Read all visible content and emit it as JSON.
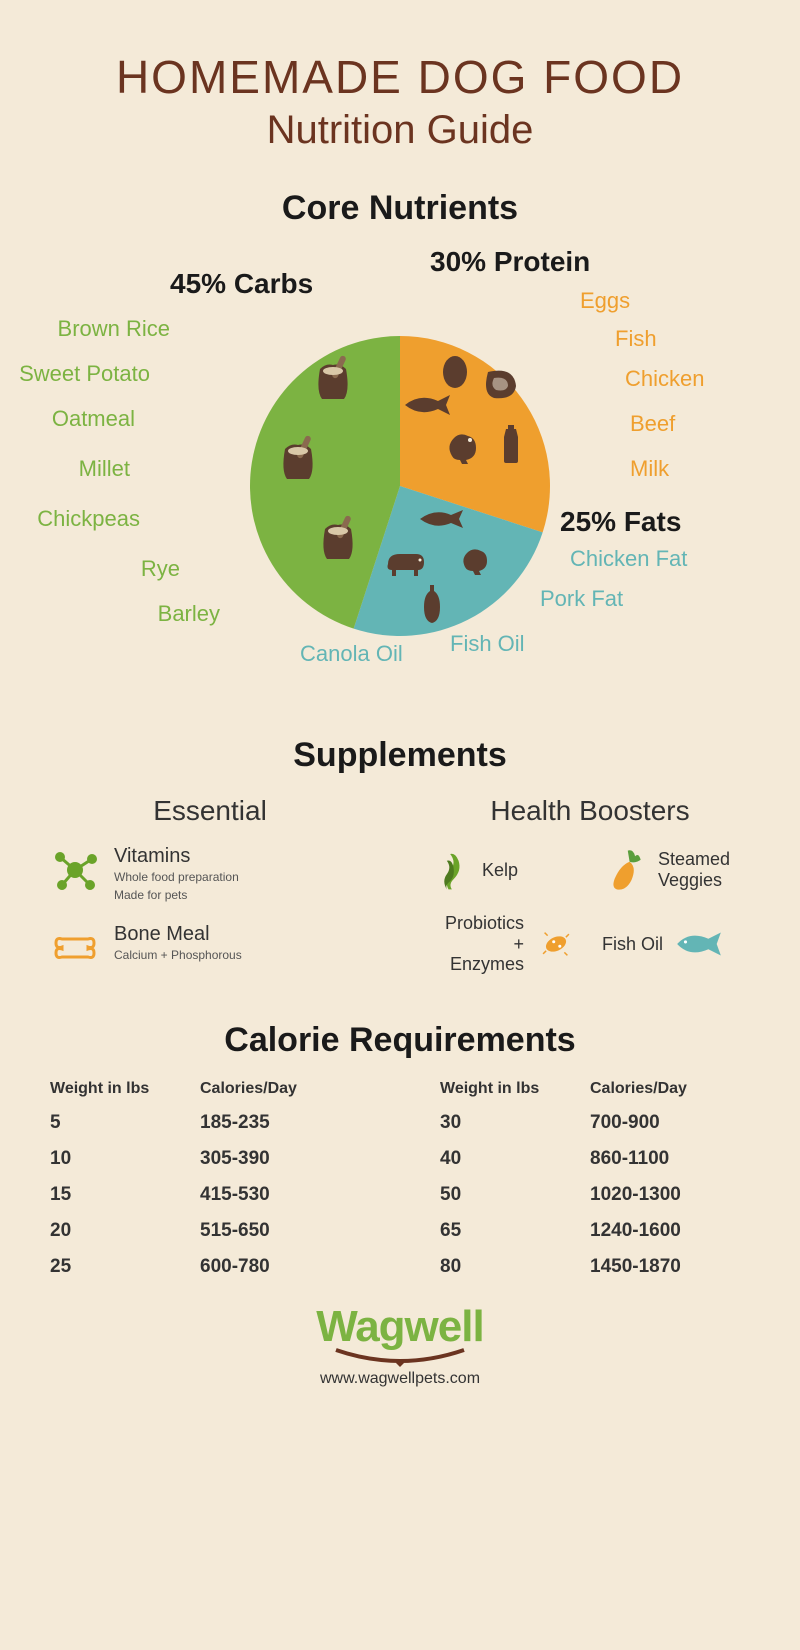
{
  "title": {
    "main": "HOMEMADE DOG FOOD",
    "sub": "Nutrition Guide"
  },
  "colors": {
    "background": "#f4ead8",
    "title": "#6b3420",
    "heading": "#1a1a1a",
    "carbs": "#7cb342",
    "protein": "#ef9f2e",
    "fats": "#63b5b5",
    "icon_dark": "#5b3d2e"
  },
  "core": {
    "heading": "Core Nutrients",
    "pie": {
      "slices": [
        {
          "key": "carbs",
          "label": "45% Carbs",
          "value": 45,
          "color": "#7cb342"
        },
        {
          "key": "protein",
          "label": "30% Protein",
          "value": 30,
          "color": "#ef9f2e"
        },
        {
          "key": "fats",
          "label": "25% Fats",
          "value": 25,
          "color": "#63b5b5"
        }
      ],
      "radius": 150
    },
    "carbs_items": [
      "Brown Rice",
      "Sweet Potato",
      "Oatmeal",
      "Millet",
      "Chickpeas",
      "Rye",
      "Barley"
    ],
    "protein_items": [
      "Eggs",
      "Fish",
      "Chicken",
      "Beef",
      "Milk"
    ],
    "fats_items": [
      "Chicken Fat",
      "Pork Fat",
      "Fish Oil",
      "Canola Oil"
    ]
  },
  "supplements": {
    "heading": "Supplements",
    "essential": {
      "heading": "Essential",
      "items": [
        {
          "name": "Vitamins",
          "desc1": "Whole food preparation",
          "desc2": "Made for pets",
          "icon": "molecule",
          "icon_color": "#6aa329"
        },
        {
          "name": "Bone Meal",
          "desc1": "Calcium + Phosphorous",
          "desc2": "",
          "icon": "bone",
          "icon_color": "#ef9f2e"
        }
      ]
    },
    "boosters": {
      "heading": "Health Boosters",
      "items": [
        {
          "name": "Kelp",
          "icon": "kelp",
          "icon_color": "#6aa329"
        },
        {
          "name": "Steamed\nVeggies",
          "icon": "carrot",
          "icon_color": "#ef9f2e"
        },
        {
          "name": "Probiotics +\nEnzymes",
          "icon": "microbe",
          "icon_color": "#ef9f2e"
        },
        {
          "name": "Fish Oil",
          "icon": "fish",
          "icon_color": "#63b5b5"
        }
      ]
    }
  },
  "calories": {
    "heading": "Calorie Requirements",
    "columns": [
      "Weight in lbs",
      "Calories/Day"
    ],
    "left": [
      {
        "w": "5",
        "c": "185-235"
      },
      {
        "w": "10",
        "c": "305-390"
      },
      {
        "w": "15",
        "c": "415-530"
      },
      {
        "w": "20",
        "c": "515-650"
      },
      {
        "w": "25",
        "c": "600-780"
      }
    ],
    "right": [
      {
        "w": "30",
        "c": "700-900"
      },
      {
        "w": "40",
        "c": "860-1100"
      },
      {
        "w": "50",
        "c": "1020-1300"
      },
      {
        "w": "65",
        "c": "1240-1600"
      },
      {
        "w": "80",
        "c": "1450-1870"
      }
    ]
  },
  "footer": {
    "brand": "Wagwell",
    "url": "www.wagwellpets.com",
    "brand_color": "#7cb342"
  }
}
